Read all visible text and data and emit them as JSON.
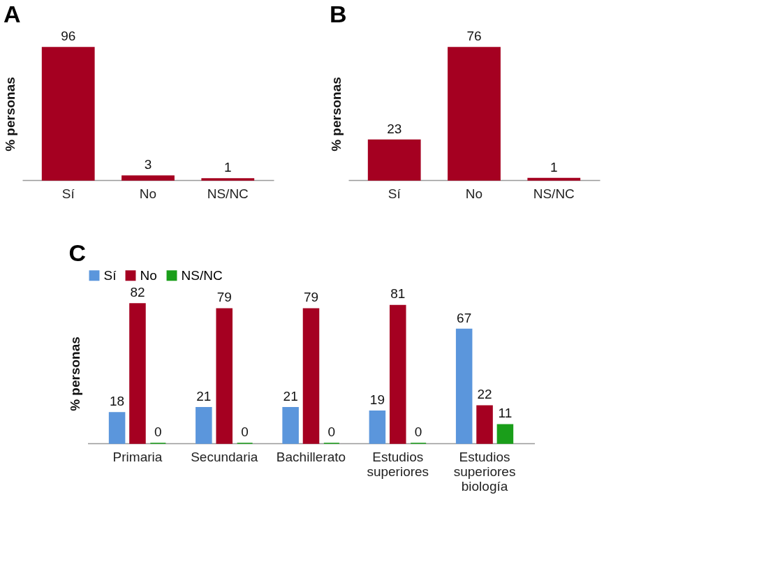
{
  "chart_data": [
    {
      "type": "bar",
      "title": "A",
      "categories": [
        "Sí",
        "No",
        "NS/NC"
      ],
      "values": [
        96,
        3,
        1
      ],
      "color": "#a50021",
      "ylabel": "% personas",
      "data_labels": true,
      "tick_labels": "x",
      "grid": false
    },
    {
      "type": "bar",
      "title": "B",
      "categories": [
        "Sí",
        "No",
        "NS/NC"
      ],
      "values": [
        23,
        76,
        1
      ],
      "color": "#a50021",
      "ylabel": "% personas",
      "data_labels": true,
      "tick_labels": "x",
      "grid": false
    },
    {
      "type": "bar",
      "title": "C",
      "categories": [
        "Primaria",
        "Secundaria",
        "Bachillerato",
        "Estudios superiores",
        "Estudios superiores biología"
      ],
      "ylabel": "% personas",
      "data_labels": true,
      "tick_labels": "x",
      "grid": false,
      "legend": "top",
      "series": [
        {
          "name": "Sí",
          "color": "#5b96dc",
          "values": [
            18,
            21,
            21,
            19,
            67
          ]
        },
        {
          "name": "No",
          "color": "#a50021",
          "values": [
            82,
            79,
            79,
            81,
            22
          ]
        },
        {
          "name": "NS/NC",
          "color": "#1a9e1a",
          "values": [
            0,
            0,
            0,
            0,
            11
          ]
        }
      ]
    }
  ]
}
